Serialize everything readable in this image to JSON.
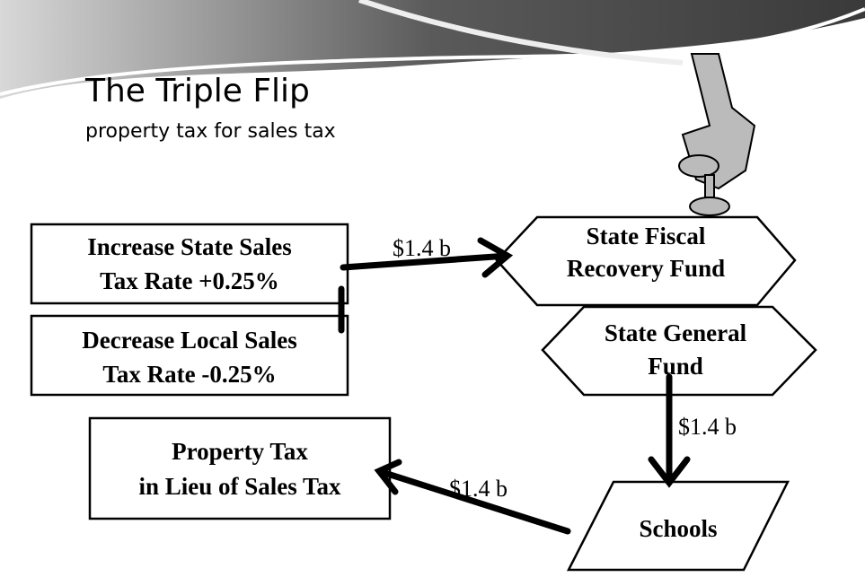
{
  "header": {
    "title": "The Triple Flip",
    "subtitle": "property tax for sales tax"
  },
  "nodes": [
    {
      "lines": [
        "Increase State Sales",
        "Tax Rate +0.25%"
      ]
    },
    {
      "lines": [
        "Decrease Local Sales",
        "Tax Rate -0.25%"
      ]
    },
    {
      "lines": [
        "State Fiscal",
        "Recovery Fund"
      ]
    },
    {
      "lines": [
        "State General",
        "Fund"
      ]
    },
    {
      "lines": [
        "Property Tax",
        "in Lieu of Sales Tax"
      ]
    },
    {
      "lines": [
        "Schools"
      ]
    }
  ],
  "edges": [
    {
      "label": "$1.4 b"
    },
    {
      "label": "$1.4 b"
    },
    {
      "label": "$1.4 b"
    }
  ]
}
